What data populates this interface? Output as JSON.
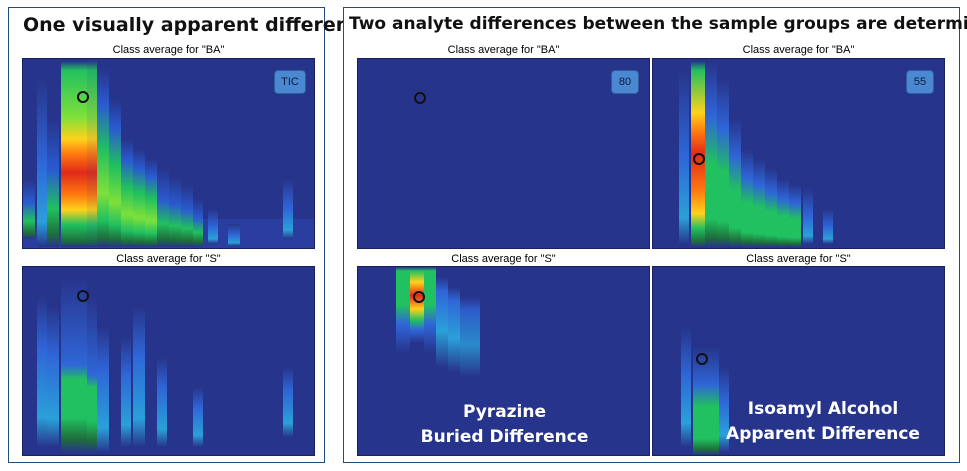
{
  "left_panel": {
    "title": "One visually apparent difference",
    "top_label": "Class average for \"BA\"",
    "top_badge": "TIC",
    "bottom_label": "Class average for \"S\""
  },
  "right_panel": {
    "title": "Two analyte differences between the sample groups are determined",
    "col1_top_label": "Class average for \"BA\"",
    "col1_badge": "80",
    "col2_top_label": "Class average for \"BA\"",
    "col2_badge": "55",
    "col1_bottom_label": "Class average for \"S\"",
    "col2_bottom_label": "Class average for \"S\"",
    "col1_annotation_line1": "Pyrazine",
    "col1_annotation_line2": "Buried Difference",
    "col2_annotation_line1": "Isoamyl Alcohol",
    "col2_annotation_line2": "Apparent Difference"
  },
  "colors": {
    "background": "#27348b",
    "low": "#2a5bd0",
    "mid": "#21c060",
    "high": "#ffd21a",
    "max": "#e02a1a",
    "border": "#1f4e7a",
    "badge": "#4a88d1"
  }
}
